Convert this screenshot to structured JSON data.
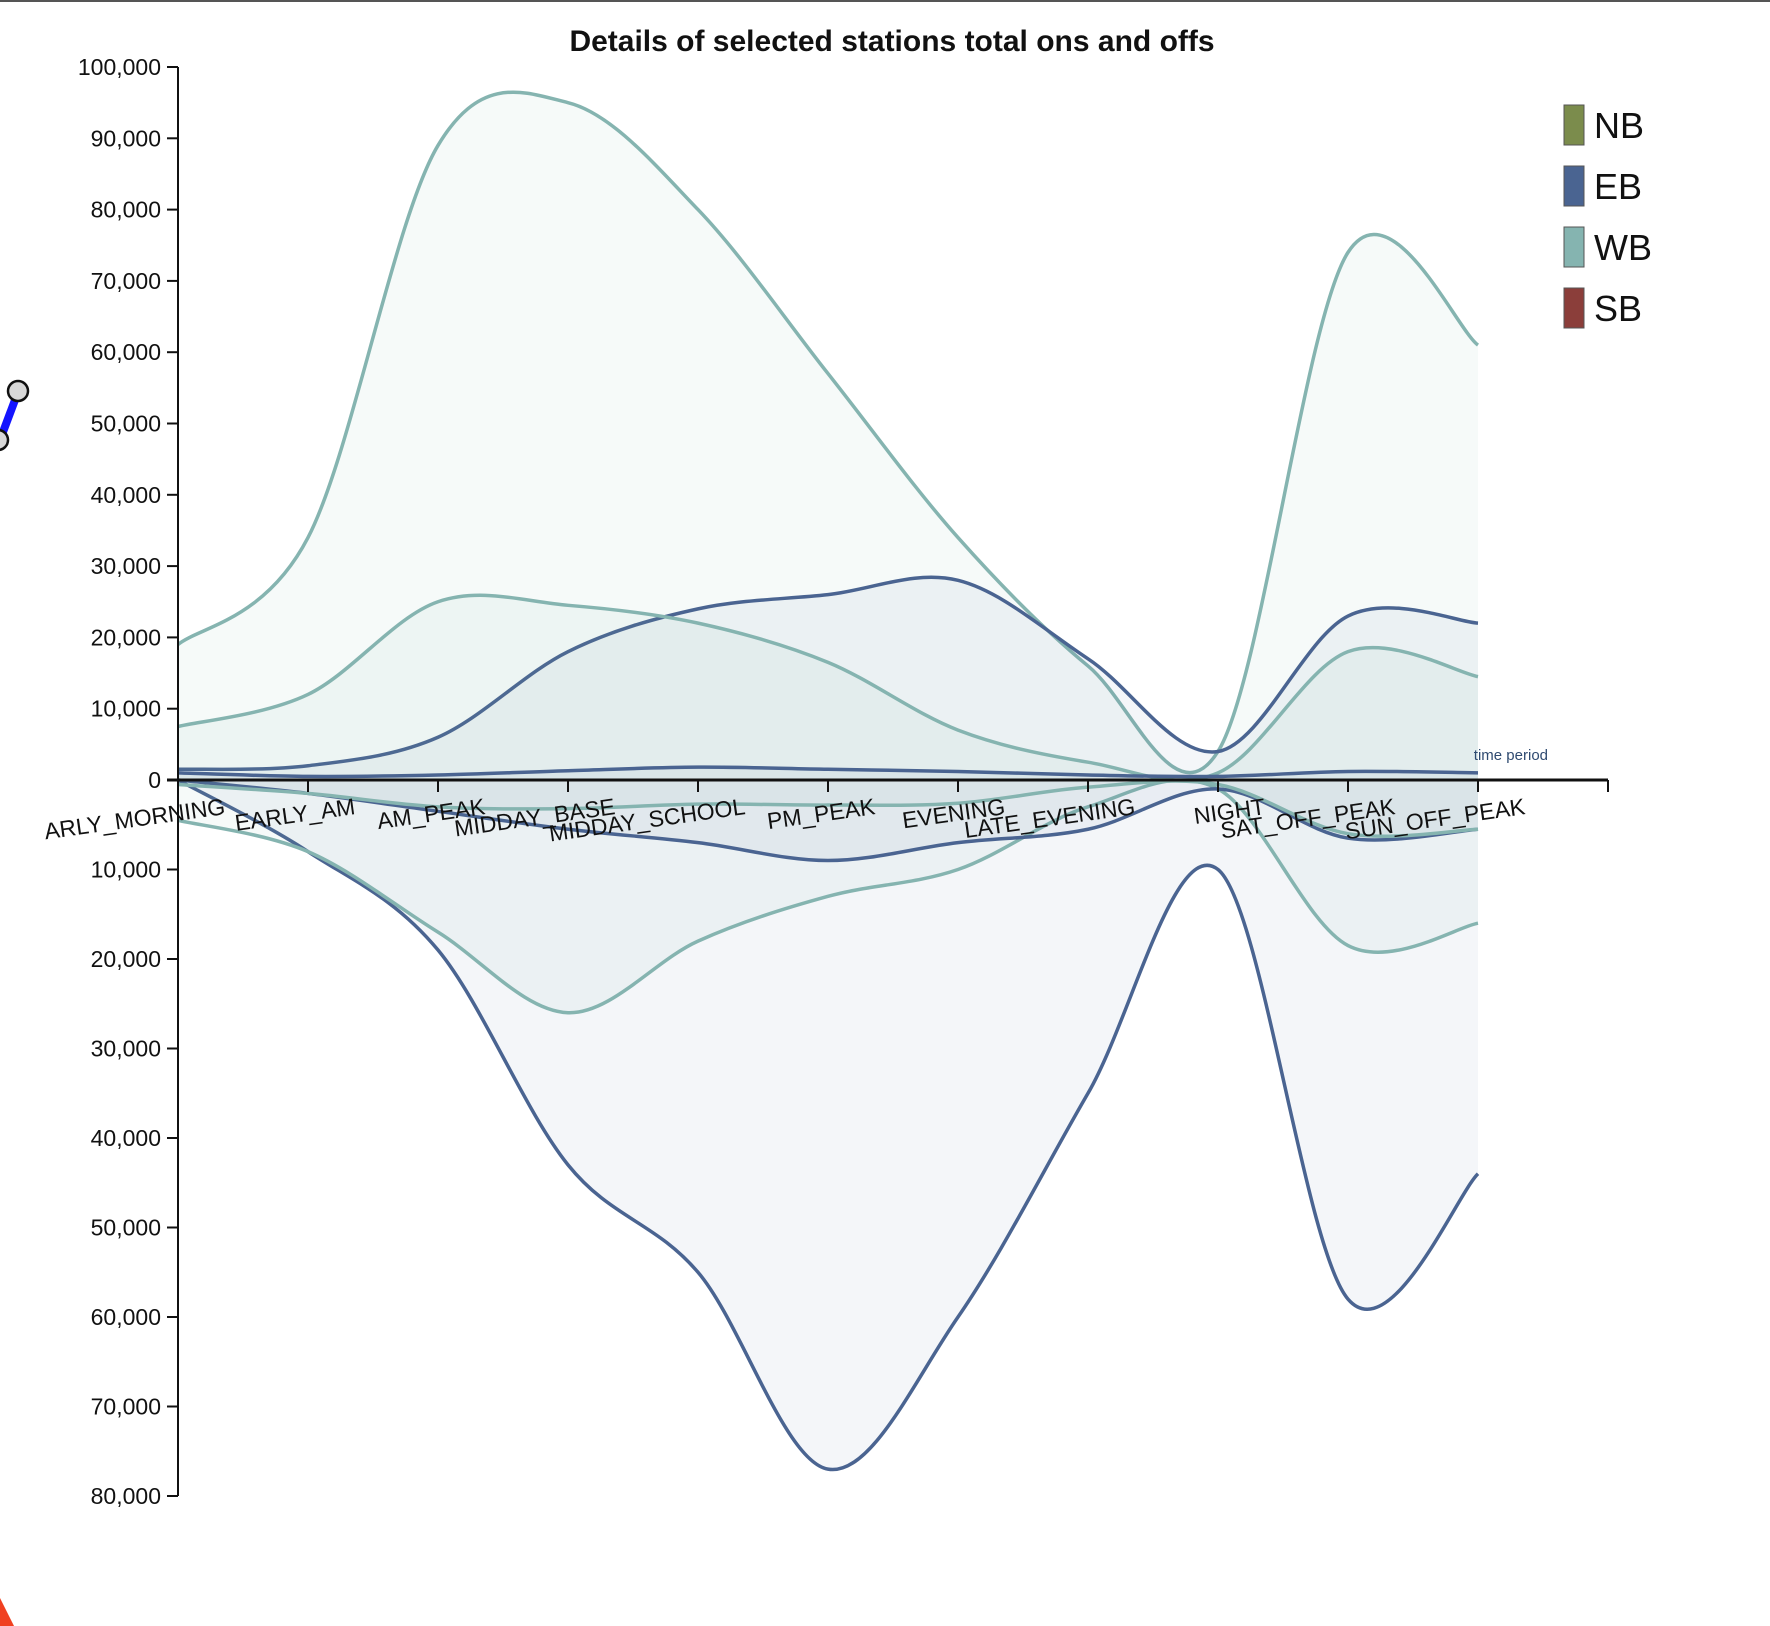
{
  "chart_data": {
    "type": "area",
    "title": "Details of selected stations total ons and offs",
    "xlabel": "time period",
    "ylabel": "",
    "categories": [
      "EARLY_MORNING",
      "EARLY_AM",
      "AM_PEAK",
      "MIDDAY_BASE",
      "MIDDAY_SCHOOL",
      "PM_PEAK",
      "EVENING",
      "LATE_EVENING",
      "NIGHT",
      "SAT_OFF_PEAK",
      "SUN_OFF_PEAK"
    ],
    "visible_first_category_label": "ARLY_MORNING",
    "ylim_ons": [
      0,
      100000
    ],
    "ylim_offs": [
      0,
      80000
    ],
    "y_ticks_ons": [
      "0",
      "10,000",
      "20,000",
      "30,000",
      "40,000",
      "50,000",
      "60,000",
      "70,000",
      "80,000",
      "90,000",
      "100,000"
    ],
    "y_ticks_offs": [
      "10,000",
      "20,000",
      "30,000",
      "40,000",
      "50,000",
      "60,000",
      "70,000",
      "80,000"
    ],
    "grid": false,
    "legend_placement": "top-right",
    "legend": [
      {
        "name": "NB",
        "color": "#7b8c4c"
      },
      {
        "name": "EB",
        "color": "#4a6491"
      },
      {
        "name": "WB",
        "color": "#85b4b0"
      },
      {
        "name": "SB",
        "color": "#8b3e3a"
      }
    ],
    "series": [
      {
        "name": "WB",
        "direction": "ons",
        "role": "total",
        "values": [
          19000,
          34000,
          89000,
          95000,
          80000,
          57000,
          34000,
          16000,
          4000,
          74000,
          61000
        ]
      },
      {
        "name": "EB",
        "direction": "ons",
        "role": "total",
        "values": [
          1500,
          2000,
          6000,
          18000,
          24000,
          26000,
          28000,
          17000,
          4000,
          23000,
          22000
        ]
      },
      {
        "name": "WB",
        "direction": "ons",
        "role": "station",
        "values": [
          7500,
          12000,
          25000,
          24500,
          22000,
          16500,
          7000,
          2500,
          1000,
          18000,
          14500
        ]
      },
      {
        "name": "EB",
        "direction": "ons",
        "role": "station",
        "values": [
          1000,
          500,
          700,
          1300,
          1800,
          1500,
          1200,
          700,
          500,
          1200,
          1000
        ]
      },
      {
        "name": "EB",
        "direction": "offs",
        "role": "total",
        "values": [
          0,
          8000,
          19000,
          43000,
          55000,
          77000,
          60000,
          35000,
          10000,
          58000,
          44000
        ]
      },
      {
        "name": "WB",
        "direction": "offs",
        "role": "total",
        "values": [
          4500,
          8000,
          17000,
          26000,
          18000,
          13000,
          10000,
          3000,
          1000,
          18500,
          16000
        ]
      },
      {
        "name": "EB",
        "direction": "offs",
        "role": "station",
        "values": [
          0,
          1500,
          3500,
          5500,
          7000,
          9000,
          7000,
          5500,
          1000,
          6500,
          5500
        ]
      },
      {
        "name": "WB",
        "direction": "offs",
        "role": "station",
        "values": [
          500,
          1500,
          3000,
          3200,
          2700,
          2800,
          2600,
          800,
          500,
          6000,
          5500
        ]
      }
    ]
  }
}
